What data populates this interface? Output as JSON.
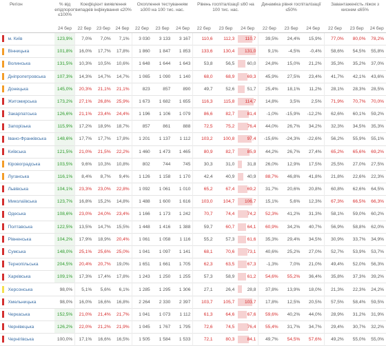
{
  "header": {
    "region": "Регіон",
    "pct_label": "% від епідпорогу ≤100%",
    "coef_label": "Коефіцієнт виявлення випадків інфікування ≤20%",
    "tests_label": "Охоплення тестуванням ≥300 на 100 тис. нас.",
    "hosp_label": "Рівень госпіталізації ≤60 на 100 тис. нас.",
    "dyn_label": "Динаміка рівня госпіталізації ≤50%",
    "beds_label": "Завантаженість ліжок з киснем ≤65%",
    "dates": [
      "24 бер",
      "22 бер",
      "23 бер",
      "24 бер"
    ]
  },
  "colors": {
    "red": "#d32f2f",
    "orange": "#f39c27",
    "yellow": "#f4e04d"
  },
  "rows": [
    {
      "mark": "red",
      "name": "м. Київ",
      "pct": "123,9%",
      "coef": [
        "7,0%",
        "7,0%",
        "7,1%"
      ],
      "tests": [
        "3 030",
        "3 133",
        "3 167"
      ],
      "hosp": [
        "110,6",
        "112,3",
        "110,7"
      ],
      "hb": 0.82,
      "dyn": [
        "39,5%",
        "24,4%",
        "15,9%"
      ],
      "beds": [
        "77,0%",
        "80,0%",
        "78,2%"
      ]
    },
    {
      "mark": "orange",
      "name": "Вінницька",
      "pct": "101,8%",
      "coef": [
        "16,0%",
        "17,7%",
        "17,8%"
      ],
      "tests": [
        "1 860",
        "1 847",
        "1 853"
      ],
      "hosp": [
        "133,6",
        "130,4",
        "131,0"
      ],
      "hb": 1.0,
      "dyn": [
        "9,1%",
        "-4,5%",
        "-0,4%"
      ],
      "beds": [
        "58,6%",
        "54,5%",
        "55,8%"
      ]
    },
    {
      "mark": "orange",
      "name": "Волинська",
      "pct": "131,5%",
      "coef": [
        "10,3%",
        "10,5%",
        "10,6%"
      ],
      "tests": [
        "1 648",
        "1 644",
        "1 643"
      ],
      "hosp": [
        "53,8",
        "56,5",
        "60,0"
      ],
      "hb": 0.44,
      "dyn": [
        "24,8%",
        "15,0%",
        "21,2%"
      ],
      "beds": [
        "35,3%",
        "35,2%",
        "37,0%"
      ]
    },
    {
      "mark": "orange",
      "name": "Дніпропетровська",
      "pct": "107,3%",
      "coef": [
        "14,3%",
        "14,7%",
        "14,7%"
      ],
      "tests": [
        "1 065",
        "1 090",
        "1 140"
      ],
      "hosp": [
        "68,0",
        "68,9",
        "69,3"
      ],
      "hb": 0.52,
      "dyn": [
        "45,9%",
        "27,5%",
        "23,4%"
      ],
      "beds": [
        "41,7%",
        "42,1%",
        "43,6%"
      ]
    },
    {
      "mark": "orange",
      "name": "Донецька",
      "pct": "145,0%",
      "coef": [
        "20,3%",
        "21,1%",
        "21,1%"
      ],
      "tests": [
        "823",
        "857",
        "890"
      ],
      "hosp": [
        "49,7",
        "52,6",
        "51,7"
      ],
      "hb": 0.39,
      "dyn": [
        "25,4%",
        "18,1%",
        "11,2%"
      ],
      "beds": [
        "28,1%",
        "28,3%",
        "28,5%"
      ]
    },
    {
      "mark": "red",
      "name": "Житомирська",
      "pct": "173,2%",
      "coef": [
        "27,1%",
        "26,8%",
        "25,9%"
      ],
      "tests": [
        "1 673",
        "1 682",
        "1 655"
      ],
      "hosp": [
        "116,3",
        "115,8",
        "114,7"
      ],
      "hb": 0.87,
      "dyn": [
        "14,8%",
        "3,5%",
        "2,5%"
      ],
      "beds": [
        "71,9%",
        "70,7%",
        "70,0%"
      ]
    },
    {
      "mark": "red",
      "name": "Закарпатська",
      "pct": "126,6%",
      "coef": [
        "21,1%",
        "23,4%",
        "24,4%"
      ],
      "tests": [
        "1 196",
        "1 106",
        "1 079"
      ],
      "hosp": [
        "86,6",
        "82,7",
        "81,4"
      ],
      "hb": 0.63,
      "dyn": [
        "-1,0%",
        "-15,9%",
        "-12,2%"
      ],
      "beds": [
        "62,6%",
        "60,1%",
        "59,2%"
      ]
    },
    {
      "mark": "red",
      "name": "Запорізька",
      "pct": "115,9%",
      "coef": [
        "17,2%",
        "18,9%",
        "18,7%"
      ],
      "tests": [
        "857",
        "861",
        "888"
      ],
      "hosp": [
        "72,5",
        "75,2",
        "76,4"
      ],
      "hb": 0.57,
      "dyn": [
        "44,0%",
        "26,7%",
        "34,2%"
      ],
      "beds": [
        "32,3%",
        "34,5%",
        "35,3%"
      ]
    },
    {
      "mark": "red",
      "name": "Івано-Франківська",
      "pct": "148,6%",
      "coef": [
        "17,7%",
        "17,7%",
        "17,8%"
      ],
      "tests": [
        "1 201",
        "1 137",
        "1 112"
      ],
      "hosp": [
        "103,2",
        "100,8",
        "97,4"
      ],
      "hb": 0.75,
      "dyn": [
        "-15,6%",
        "-24,3%",
        "-22,6%"
      ],
      "beds": [
        "56,2%",
        "55,9%",
        "55,1%"
      ]
    },
    {
      "mark": "red",
      "name": "Київська",
      "pct": "121,5%",
      "coef": [
        "21,0%",
        "21,5%",
        "22,2%"
      ],
      "tests": [
        "1 460",
        "1 473",
        "1 465"
      ],
      "hosp": [
        "80,9",
        "82,7",
        "85,9"
      ],
      "hb": 0.64,
      "dyn": [
        "44,2%",
        "26,7%",
        "27,4%"
      ],
      "beds": [
        "65,2%",
        "65,6%",
        "69,2%"
      ]
    },
    {
      "mark": "orange",
      "name": "Кіровоградська",
      "pct": "103,5%",
      "coef": [
        "9,6%",
        "10,3%",
        "10,8%"
      ],
      "tests": [
        "802",
        "744",
        "745"
      ],
      "hosp": [
        "30,3",
        "31,0",
        "31,8"
      ],
      "hb": 0.24,
      "dyn": [
        "26,0%",
        "12,9%",
        "17,5%"
      ],
      "beds": [
        "25,5%",
        "27,0%",
        "27,5%"
      ]
    },
    {
      "mark": "orange",
      "name": "Луганська",
      "pct": "116,1%",
      "coef": [
        "8,4%",
        "8,7%",
        "9,4%"
      ],
      "tests": [
        "1 126",
        "1 158",
        "1 170"
      ],
      "hosp": [
        "42,4",
        "40,9",
        "40,9"
      ],
      "hb": 0.31,
      "dyn": [
        "88,7%",
        "46,8%",
        "41,8%"
      ],
      "beds": [
        "21,8%",
        "22,6%",
        "22,3%"
      ]
    },
    {
      "mark": "red",
      "name": "Львівська",
      "pct": "104,1%",
      "coef": [
        "23,3%",
        "23,0%",
        "22,8%"
      ],
      "tests": [
        "1 092",
        "1 061",
        "1 010"
      ],
      "hosp": [
        "65,2",
        "67,4",
        "69,2"
      ],
      "hb": 0.52,
      "dyn": [
        "31,7%",
        "20,6%",
        "20,8%"
      ],
      "beds": [
        "60,8%",
        "62,6%",
        "64,5%"
      ]
    },
    {
      "mark": "red",
      "name": "Миколаївська",
      "pct": "123,7%",
      "coef": [
        "16,8%",
        "15,2%",
        "14,8%"
      ],
      "tests": [
        "1 488",
        "1 600",
        "1 616"
      ],
      "hosp": [
        "103,0",
        "104,7",
        "106,7"
      ],
      "hb": 0.8,
      "dyn": [
        "15,1%",
        "5,6%",
        "12,3%"
      ],
      "beds": [
        "67,3%",
        "66,5%",
        "66,3%"
      ]
    },
    {
      "mark": "red",
      "name": "Одеська",
      "pct": "108,6%",
      "coef": [
        "23,0%",
        "24,0%",
        "23,4%"
      ],
      "tests": [
        "1 166",
        "1 173",
        "1 242"
      ],
      "hosp": [
        "70,7",
        "74,4",
        "74,2"
      ],
      "hb": 0.56,
      "dyn": [
        "52,3%",
        "41,2%",
        "31,3%"
      ],
      "beds": [
        "58,1%",
        "59,0%",
        "60,2%"
      ]
    },
    {
      "mark": "red",
      "name": "Полтавська",
      "pct": "122,5%",
      "coef": [
        "13,5%",
        "14,7%",
        "15,5%"
      ],
      "tests": [
        "1 448",
        "1 416",
        "1 388"
      ],
      "hosp": [
        "59,7",
        "60,7",
        "64,1"
      ],
      "hb": 0.48,
      "dyn": [
        "60,9%",
        "34,2%",
        "40,7%"
      ],
      "beds": [
        "56,9%",
        "58,8%",
        "62,0%"
      ]
    },
    {
      "mark": "red",
      "name": "Рівненська",
      "pct": "104,2%",
      "coef": [
        "17,9%",
        "18,9%",
        "20,4%"
      ],
      "tests": [
        "1 061",
        "1 058",
        "1 116"
      ],
      "hosp": [
        "55,2",
        "57,3",
        "61,6"
      ],
      "hb": 0.46,
      "dyn": [
        "35,3%",
        "29,4%",
        "34,5%"
      ],
      "beds": [
        "30,9%",
        "33,7%",
        "34,9%"
      ]
    },
    {
      "mark": "red",
      "name": "Сумська",
      "pct": "148,0%",
      "coef": [
        "25,1%",
        "25,6%",
        "25,0%"
      ],
      "tests": [
        "1 041",
        "1 097",
        "1 141"
      ],
      "hosp": [
        "68,1",
        "70,6",
        "73,1"
      ],
      "hb": 0.55,
      "dyn": [
        "40,6%",
        "25,2%",
        "27,0%"
      ],
      "beds": [
        "52,7%",
        "53,9%",
        "53,7%"
      ]
    },
    {
      "mark": "red",
      "name": "Тернопільська",
      "pct": "204,5%",
      "coef": [
        "20,4%",
        "20,7%",
        "19,0%"
      ],
      "tests": [
        "1 651",
        "1 661",
        "1 705"
      ],
      "hosp": [
        "62,3",
        "63,5",
        "67,3"
      ],
      "hb": 0.5,
      "dyn": [
        "-1,3%",
        "7,0%",
        "21,0%"
      ],
      "beds": [
        "49,4%",
        "52,0%",
        "56,3%"
      ]
    },
    {
      "mark": "red",
      "name": "Харківська",
      "pct": "109,1%",
      "coef": [
        "17,3%",
        "17,4%",
        "17,8%"
      ],
      "tests": [
        "1 243",
        "1 250",
        "1 255"
      ],
      "hosp": [
        "57,3",
        "58,9",
        "61,2"
      ],
      "hb": 0.46,
      "dyn": [
        "54,6%",
        "55,2%",
        "36,4%"
      ],
      "beds": [
        "35,8%",
        "37,3%",
        "39,2%"
      ]
    },
    {
      "mark": "yellow",
      "name": "Херсонська",
      "pct": "98,0%",
      "coef": [
        "5,1%",
        "5,6%",
        "6,1%"
      ],
      "tests": [
        "1 285",
        "1 295",
        "1 306"
      ],
      "hosp": [
        "27,1",
        "26,4",
        "28,8"
      ],
      "hb": 0.22,
      "dyn": [
        "37,8%",
        "13,9%",
        "18,0%"
      ],
      "beds": [
        "21,3%",
        "22,3%",
        "24,2%"
      ]
    },
    {
      "mark": "red",
      "name": "Хмельницька",
      "pct": "98,0%",
      "coef": [
        "16,0%",
        "16,6%",
        "16,8%"
      ],
      "tests": [
        "2 264",
        "2 330",
        "2 397"
      ],
      "hosp": [
        "103,7",
        "105,7",
        "103,7"
      ],
      "hb": 0.8,
      "dyn": [
        "17,8%",
        "12,5%",
        "20,5%"
      ],
      "beds": [
        "57,5%",
        "58,4%",
        "59,5%"
      ]
    },
    {
      "mark": "red",
      "name": "Черкаська",
      "pct": "152,5%",
      "coef": [
        "21,0%",
        "21,4%",
        "21,7%"
      ],
      "tests": [
        "1 041",
        "1 073",
        "1 112"
      ],
      "hosp": [
        "61,3",
        "64,6",
        "67,6"
      ],
      "hb": 0.51,
      "dyn": [
        "59,6%",
        "40,2%",
        "44,0%"
      ],
      "beds": [
        "28,9%",
        "31,2%",
        "31,9%"
      ]
    },
    {
      "mark": "red",
      "name": "Чернівецька",
      "pct": "126,2%",
      "coef": [
        "22,0%",
        "21,2%",
        "21,9%"
      ],
      "tests": [
        "1 045",
        "1 767",
        "1 795"
      ],
      "hosp": [
        "72,6",
        "74,5",
        "76,4"
      ],
      "hb": 0.57,
      "dyn": [
        "55,4%",
        "31,7%",
        "34,7%"
      ],
      "beds": [
        "29,4%",
        "30,7%",
        "32,2%"
      ]
    },
    {
      "mark": "red",
      "name": "Чернігівська",
      "pct": "100,0%",
      "coef": [
        "17,1%",
        "16,6%",
        "16,5%"
      ],
      "tests": [
        "1 505",
        "1 584",
        "1 533"
      ],
      "hosp": [
        "72,1",
        "80,3",
        "84,1"
      ],
      "hb": 0.63,
      "dyn": [
        "49,7%",
        "54,5%",
        "57,6%"
      ],
      "beds": [
        "49,2%",
        "55,0%",
        "55,0%"
      ]
    }
  ]
}
